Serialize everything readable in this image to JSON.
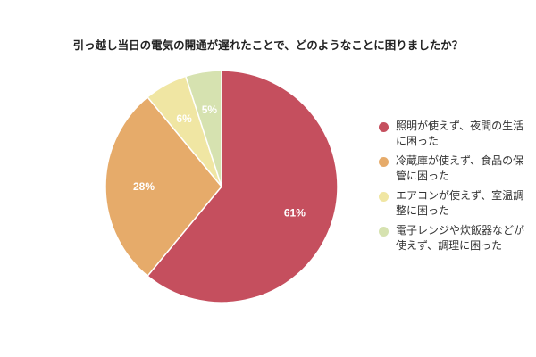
{
  "chart_data": {
    "type": "pie",
    "title": "引っ越し当日の電気の開通が遅れたことで、どのようなことに困りましたか？",
    "slices": [
      {
        "label_lines": [
          "照明が使えず、夜間の生活",
          "に困った"
        ],
        "value": 61,
        "value_label": "61%",
        "color": "#c54f5e"
      },
      {
        "label_lines": [
          "冷蔵庫が使えず、食品の保",
          "管に困った"
        ],
        "value": 28,
        "value_label": "28%",
        "color": "#e6ab6a"
      },
      {
        "label_lines": [
          "エアコンが使えず、室温調",
          "整に困った"
        ],
        "value": 6,
        "value_label": "6%",
        "color": "#f0e6a3"
      },
      {
        "label_lines": [
          "電子レンジや炊飯器などが",
          "使えず、調理に困った"
        ],
        "value": 5,
        "value_label": "5%",
        "color": "#d6e2b0"
      }
    ],
    "legend_position": "right",
    "start": "top",
    "direction": "clockwise"
  }
}
